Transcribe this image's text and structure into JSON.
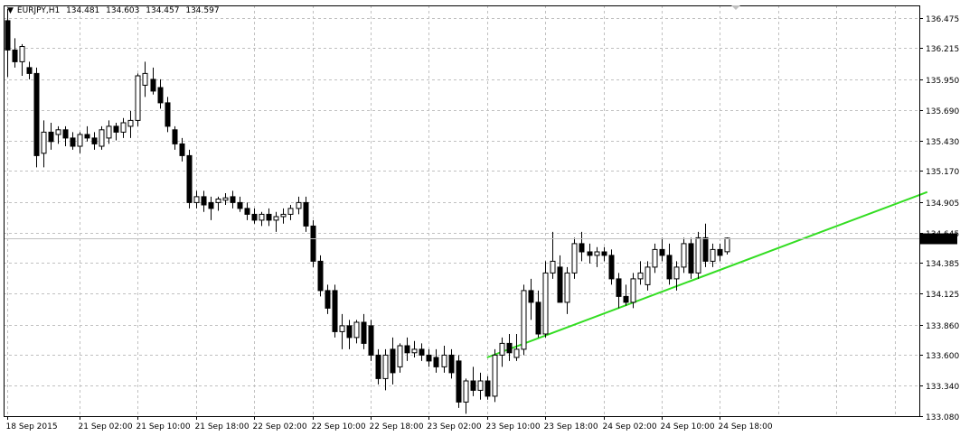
{
  "info": {
    "symbol": "EURJPY,H1",
    "open": "134.481",
    "high": "134.603",
    "low": "134.457",
    "close": "134.597"
  },
  "colors": {
    "background": "#ffffff",
    "grid": "#c0c0c0",
    "candle": "#000000",
    "trendline": "#33dd22",
    "price_line": "#c0c0c0",
    "price_label_bg": "#000000",
    "price_label_text": "#ffffff"
  },
  "chart_data": {
    "type": "candlestick",
    "title": "EURJPY,H1",
    "ylim": [
      133.08,
      136.58
    ],
    "yticks": [
      "136.475",
      "136.215",
      "135.950",
      "135.690",
      "135.430",
      "135.170",
      "134.905",
      "134.645",
      "134.385",
      "134.125",
      "133.860",
      "133.600",
      "133.340",
      "133.080"
    ],
    "xticks": [
      {
        "label": "18 Sep 2015",
        "index": 0
      },
      {
        "label": "21 Sep 02:00",
        "index": 10
      },
      {
        "label": "21 Sep 10:00",
        "index": 18
      },
      {
        "label": "21 Sep 18:00",
        "index": 26
      },
      {
        "label": "22 Sep 02:00",
        "index": 34
      },
      {
        "label": "22 Sep 10:00",
        "index": 42
      },
      {
        "label": "22 Sep 18:00",
        "index": 50
      },
      {
        "label": "23 Sep 02:00",
        "index": 58
      },
      {
        "label": "23 Sep 10:00",
        "index": 66
      },
      {
        "label": "23 Sep 18:00",
        "index": 74
      },
      {
        "label": "24 Sep 02:00",
        "index": 82
      },
      {
        "label": "24 Sep 10:00",
        "index": 90
      },
      {
        "label": "24 Sep 18:00",
        "index": 98
      }
    ],
    "current_price": "134.597",
    "trendline": {
      "start": {
        "index": 66,
        "price": 133.58
      },
      "end": {
        "index": 126.5,
        "price": 134.99
      }
    },
    "candles": [
      [
        136.45,
        136.55,
        135.97,
        136.2
      ],
      [
        136.2,
        136.3,
        136.05,
        136.1
      ],
      [
        136.1,
        136.25,
        135.98,
        136.23
      ],
      [
        136.05,
        136.1,
        135.95,
        136.0
      ],
      [
        136.0,
        136.05,
        135.2,
        135.3
      ],
      [
        135.32,
        135.6,
        135.2,
        135.5
      ],
      [
        135.5,
        135.58,
        135.35,
        135.42
      ],
      [
        135.48,
        135.55,
        135.4,
        135.52
      ],
      [
        135.52,
        135.55,
        135.38,
        135.45
      ],
      [
        135.45,
        135.5,
        135.35,
        135.38
      ],
      [
        135.38,
        135.5,
        135.32,
        135.48
      ],
      [
        135.48,
        135.55,
        135.42,
        135.45
      ],
      [
        135.45,
        135.5,
        135.35,
        135.4
      ],
      [
        135.38,
        135.55,
        135.35,
        135.52
      ],
      [
        135.45,
        135.6,
        135.4,
        135.55
      ],
      [
        135.55,
        135.58,
        135.43,
        135.5
      ],
      [
        135.5,
        135.62,
        135.45,
        135.58
      ],
      [
        135.55,
        135.68,
        135.45,
        135.6
      ],
      [
        135.6,
        136.0,
        135.55,
        135.98
      ],
      [
        135.9,
        136.1,
        135.8,
        136.0
      ],
      [
        135.95,
        136.05,
        135.82,
        135.85
      ],
      [
        135.88,
        135.95,
        135.7,
        135.75
      ],
      [
        135.75,
        135.8,
        135.5,
        135.55
      ],
      [
        135.52,
        135.55,
        135.35,
        135.4
      ],
      [
        135.4,
        135.45,
        135.25,
        135.3
      ],
      [
        135.3,
        135.35,
        134.85,
        134.9
      ],
      [
        134.9,
        135.0,
        134.85,
        134.95
      ],
      [
        134.95,
        135.0,
        134.82,
        134.88
      ],
      [
        134.9,
        134.95,
        134.75,
        134.85
      ],
      [
        134.9,
        134.95,
        134.83,
        134.93
      ],
      [
        134.92,
        134.98,
        134.88,
        134.94
      ],
      [
        134.95,
        135.0,
        134.85,
        134.9
      ],
      [
        134.9,
        134.95,
        134.82,
        134.85
      ],
      [
        134.85,
        134.9,
        134.75,
        134.8
      ],
      [
        134.8,
        134.85,
        134.72,
        134.75
      ],
      [
        134.75,
        134.82,
        134.7,
        134.8
      ],
      [
        134.8,
        134.85,
        134.7,
        134.75
      ],
      [
        134.75,
        134.82,
        134.65,
        134.78
      ],
      [
        134.78,
        134.85,
        134.72,
        134.8
      ],
      [
        134.8,
        134.88,
        134.75,
        134.85
      ],
      [
        134.85,
        134.95,
        134.8,
        134.9
      ],
      [
        134.9,
        134.95,
        134.65,
        134.7
      ],
      [
        134.7,
        134.75,
        134.35,
        134.4
      ],
      [
        134.4,
        134.45,
        134.1,
        134.15
      ],
      [
        134.15,
        134.2,
        133.95,
        134.0
      ],
      [
        134.15,
        134.2,
        133.75,
        133.8
      ],
      [
        133.8,
        133.95,
        133.65,
        133.85
      ],
      [
        133.85,
        133.9,
        133.65,
        133.75
      ],
      [
        133.75,
        133.9,
        133.7,
        133.88
      ],
      [
        133.88,
        133.95,
        133.65,
        133.7
      ],
      [
        133.85,
        133.9,
        133.55,
        133.6
      ],
      [
        133.6,
        133.65,
        133.35,
        133.4
      ],
      [
        133.4,
        133.65,
        133.3,
        133.6
      ],
      [
        133.65,
        133.75,
        133.35,
        133.45
      ],
      [
        133.5,
        133.7,
        133.45,
        133.68
      ],
      [
        133.68,
        133.75,
        133.55,
        133.62
      ],
      [
        133.62,
        133.72,
        133.58,
        133.65
      ],
      [
        133.65,
        133.7,
        133.55,
        133.6
      ],
      [
        133.6,
        133.65,
        133.5,
        133.55
      ],
      [
        133.58,
        133.65,
        133.45,
        133.5
      ],
      [
        133.5,
        133.68,
        133.45,
        133.6
      ],
      [
        133.6,
        133.65,
        133.4,
        133.45
      ],
      [
        133.55,
        133.6,
        133.15,
        133.2
      ],
      [
        133.2,
        133.4,
        133.1,
        133.38
      ],
      [
        133.38,
        133.5,
        133.25,
        133.3
      ],
      [
        133.3,
        133.45,
        133.22,
        133.38
      ],
      [
        133.38,
        133.42,
        133.22,
        133.25
      ],
      [
        133.25,
        133.65,
        133.2,
        133.6
      ],
      [
        133.6,
        133.75,
        133.5,
        133.7
      ],
      [
        133.7,
        133.78,
        133.55,
        133.62
      ],
      [
        133.58,
        133.78,
        133.55,
        133.65
      ],
      [
        133.65,
        134.2,
        133.6,
        134.15
      ],
      [
        134.15,
        134.25,
        133.9,
        134.05
      ],
      [
        134.05,
        134.15,
        133.75,
        133.78
      ],
      [
        133.78,
        134.4,
        133.75,
        134.3
      ],
      [
        134.3,
        134.65,
        134.25,
        134.4
      ],
      [
        134.35,
        134.45,
        134.05,
        134.05
      ],
      [
        134.05,
        134.35,
        133.95,
        134.3
      ],
      [
        134.3,
        134.6,
        134.25,
        134.55
      ],
      [
        134.55,
        134.65,
        134.4,
        134.48
      ],
      [
        134.48,
        134.55,
        134.38,
        134.45
      ],
      [
        134.45,
        134.52,
        134.35,
        134.48
      ],
      [
        134.48,
        134.52,
        134.4,
        134.45
      ],
      [
        134.45,
        134.5,
        134.2,
        134.25
      ],
      [
        134.25,
        134.3,
        134.0,
        134.1
      ],
      [
        134.1,
        134.2,
        134.02,
        134.05
      ],
      [
        134.05,
        134.3,
        134.0,
        134.25
      ],
      [
        134.25,
        134.4,
        134.2,
        134.3
      ],
      [
        134.2,
        134.4,
        134.15,
        134.35
      ],
      [
        134.35,
        134.55,
        134.3,
        134.5
      ],
      [
        134.5,
        134.6,
        134.4,
        134.45
      ],
      [
        134.45,
        134.55,
        134.2,
        134.25
      ],
      [
        134.25,
        134.4,
        134.15,
        134.35
      ],
      [
        134.35,
        134.6,
        134.3,
        134.55
      ],
      [
        134.55,
        134.6,
        134.25,
        134.3
      ],
      [
        134.3,
        134.65,
        134.25,
        134.6
      ],
      [
        134.6,
        134.72,
        134.35,
        134.4
      ],
      [
        134.4,
        134.55,
        134.35,
        134.5
      ],
      [
        134.5,
        134.55,
        134.4,
        134.45
      ],
      [
        134.481,
        134.603,
        134.457,
        134.597
      ]
    ]
  }
}
